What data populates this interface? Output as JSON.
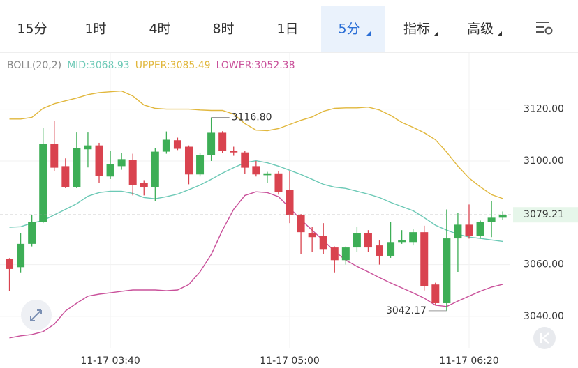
{
  "tabs": [
    {
      "label": "15分"
    },
    {
      "label": "1时"
    },
    {
      "label": "4时"
    },
    {
      "label": "8时"
    },
    {
      "label": "1日"
    },
    {
      "label": "5分",
      "selected": true,
      "dropdown": true
    },
    {
      "label": "指标",
      "dropdown": true
    },
    {
      "label": "高级",
      "dropdown": true
    }
  ],
  "chart_data": {
    "type": "candlestick",
    "indicator": "BOLL(20,2)",
    "categories": [
      null,
      null,
      null,
      null,
      null,
      null,
      null,
      null,
      null,
      "11-17 03:40",
      null,
      null,
      null,
      null,
      null,
      null,
      null,
      null,
      null,
      null,
      null,
      null,
      null,
      null,
      null,
      "11-17 05:00",
      null,
      null,
      null,
      null,
      null,
      null,
      null,
      null,
      null,
      null,
      null,
      null,
      null,
      null,
      null,
      "11-17 06:20",
      null,
      null,
      null
    ],
    "open": [
      3062.3,
      3059,
      3068,
      3076.5,
      3106.6,
      3098,
      3090,
      3104.5,
      3106,
      3094,
      3098,
      3100.4,
      3091.5,
      3090,
      3103.6,
      3108,
      3105.5,
      3094.8,
      3102.3,
      3110.9,
      3104,
      3103.3,
      3098,
      3094.5,
      3095.2,
      3088.9,
      3079.2,
      3072,
      3071,
      3066.6,
      3061.7,
      3066.6,
      3072,
      3067.4,
      3063.4,
      3068.7,
      3068.7,
      3072.5,
      3052.3,
      3045.1,
      3070.1,
      3075.4,
      3071.1,
      3076.5,
      3078.1
    ],
    "high": [
      3062.5,
      3072,
      3079,
      3112.8,
      3115.4,
      3101,
      3111,
      3111,
      3107,
      3104,
      3103,
      3102.8,
      3092.6,
      3105,
      3111.4,
      3109,
      3106,
      3103,
      3116.8,
      3111.5,
      3105.5,
      3104,
      3100,
      3095.8,
      3096,
      3096,
      3079.5,
      3074.6,
      3076,
      3067,
      3067,
      3074.6,
      3073.3,
      3069.3,
      3076.5,
      3073.3,
      3073.8,
      3075,
      3053,
      3081.3,
      3080,
      3083.2,
      3077,
      3084.6,
      3080.5
    ],
    "low": [
      3049.7,
      3057,
      3067,
      3076,
      3096,
      3089.5,
      3089.5,
      3097.5,
      3091.5,
      3093,
      3096.6,
      3086.7,
      3086.7,
      3084.6,
      3102.8,
      3104.2,
      3091,
      3094,
      3100,
      3103,
      3102,
      3095,
      3094,
      3091.5,
      3087,
      3076,
      3064,
      3065,
      3064,
      3057,
      3060,
      3065,
      3065,
      3060,
      3062.6,
      3068,
      3067.4,
      3050,
      3044.3,
      3042.17,
      3057.2,
      3070,
      3070,
      3070.6,
      3077.3
    ],
    "close": [
      3058.3,
      3068,
      3076.5,
      3106.6,
      3097.4,
      3089.9,
      3105,
      3106,
      3094.2,
      3098.8,
      3100.7,
      3090.7,
      3090,
      3103.6,
      3108.2,
      3104.7,
      3094.8,
      3102.3,
      3110.9,
      3103.9,
      3103.3,
      3097.4,
      3094.8,
      3095.2,
      3088,
      3079.2,
      3072.5,
      3070.6,
      3066,
      3061.7,
      3066.6,
      3072,
      3066.6,
      3063.4,
      3068.7,
      3069.3,
      3072.5,
      3051.8,
      3045.1,
      3070.1,
      3075.4,
      3071.1,
      3076.5,
      3078.1,
      3079.21
    ],
    "up_color": "#3dae56",
    "down_color": "#d9434f",
    "series": [
      {
        "name": "MID:3068.93",
        "color": "#6cc9b6",
        "values": [
          3074.4,
          3074.6,
          3076,
          3077,
          3079.2,
          3081.3,
          3083.5,
          3086.4,
          3087.8,
          3088.3,
          3088.3,
          3087.5,
          3085.9,
          3085.4,
          3086.2,
          3087.2,
          3088.9,
          3090.7,
          3092.9,
          3095.3,
          3097.4,
          3099.3,
          3100.1,
          3099.3,
          3098,
          3096.4,
          3094.8,
          3092.9,
          3091,
          3089.9,
          3089.4,
          3088.3,
          3087.2,
          3085.9,
          3084,
          3082.4,
          3080.8,
          3078.1,
          3075.2,
          3073.3,
          3071.7,
          3070.6,
          3070.1,
          3069.5,
          3068.93
        ]
      },
      {
        "name": "UPPER:3085.49",
        "color": "#e1b73c",
        "values": [
          3116.2,
          3116.2,
          3116.8,
          3120.3,
          3122.1,
          3123.2,
          3124.3,
          3125.6,
          3126.4,
          3126.7,
          3127,
          3125.1,
          3121.6,
          3120.3,
          3120,
          3120,
          3120,
          3119.7,
          3119.5,
          3119.5,
          3118.1,
          3114.4,
          3111.9,
          3111.7,
          3112.5,
          3114.1,
          3115.7,
          3117,
          3119.2,
          3120.3,
          3120.5,
          3120.5,
          3120.8,
          3119.7,
          3117.6,
          3114.9,
          3113,
          3110.9,
          3108.2,
          3103.4,
          3098,
          3093.4,
          3090,
          3087,
          3085.49
        ]
      },
      {
        "name": "LOWER:3052.38",
        "color": "#c9509a",
        "values": [
          3031.7,
          3032.5,
          3033,
          3034.1,
          3037,
          3042.1,
          3045.1,
          3047.8,
          3048.6,
          3049.1,
          3049.7,
          3050.2,
          3050.2,
          3050.2,
          3049.9,
          3050.2,
          3052.3,
          3057.2,
          3063.9,
          3073.3,
          3081.3,
          3086.7,
          3088.1,
          3087.8,
          3086.2,
          3081.9,
          3077.3,
          3073.3,
          3069.3,
          3065.2,
          3061.7,
          3059.3,
          3057.2,
          3055,
          3052.9,
          3051,
          3049.1,
          3047,
          3044.3,
          3043.8,
          3045.9,
          3047.8,
          3049.7,
          3051.3,
          3052.38
        ]
      }
    ],
    "ylim": [
      3027.6,
      3141.7
    ],
    "yticks": [
      {
        "value": 3120,
        "label": "3120.00"
      },
      {
        "value": 3100,
        "label": "3100.00"
      },
      {
        "value": 3060,
        "label": "3060.00"
      },
      {
        "value": 3040,
        "label": "3040.00"
      }
    ],
    "grid": true,
    "last_price": 3079.21,
    "annotations": [
      {
        "value": 3116.8,
        "label": "3116.80",
        "index": 18
      },
      {
        "value": 3042.17,
        "label": "3042.17",
        "index": 39
      }
    ]
  }
}
